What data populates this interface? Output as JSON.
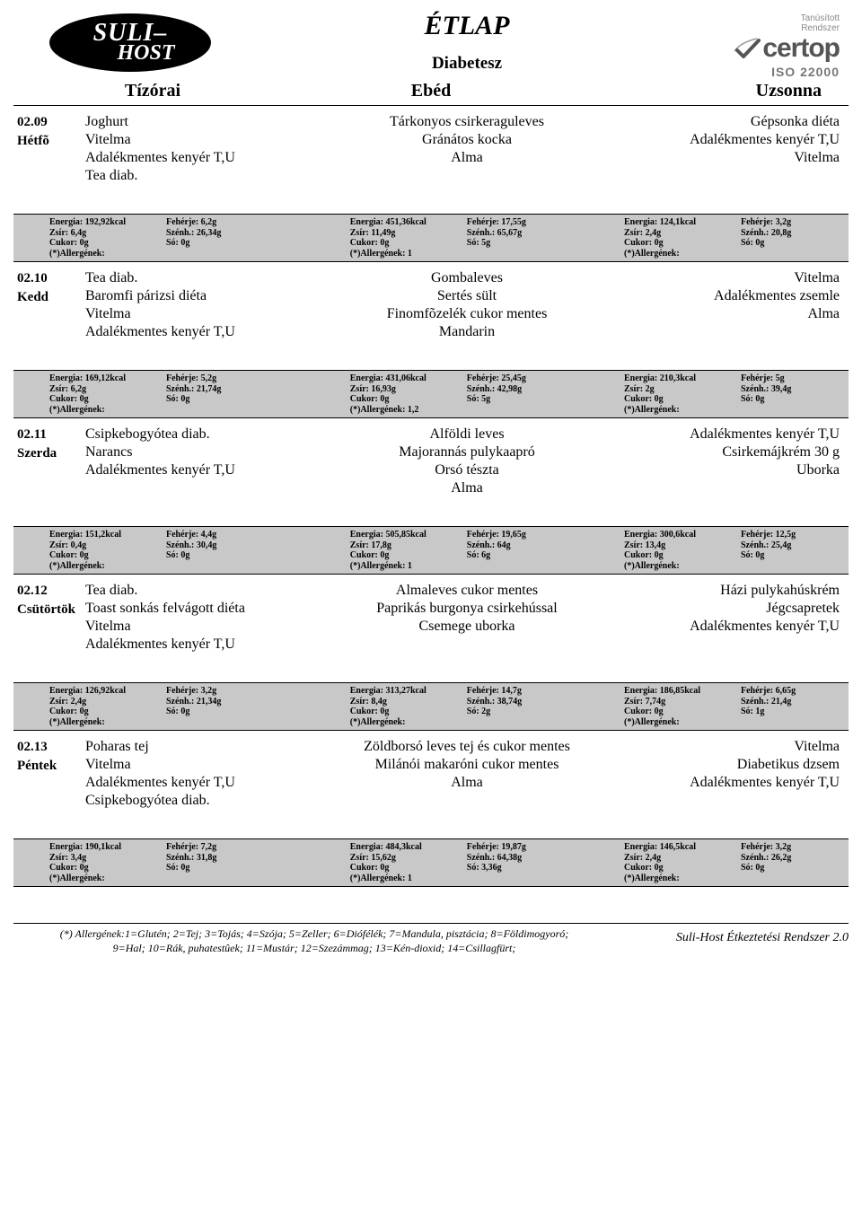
{
  "header": {
    "logo_line1": "SULI–",
    "logo_line2": "HOST",
    "title": "ÉTLAP",
    "subtitle": "Diabetesz",
    "certop_label1": "Tanúsított",
    "certop_label2": "Rendszer",
    "certop_brand": "certop",
    "certop_iso": "ISO 22000"
  },
  "columns": {
    "c1": "Tízórai",
    "c2": "Ebéd",
    "c3": "Uzsonna"
  },
  "days": [
    {
      "date": "02.09",
      "dow": "Hétfõ",
      "tizorai": [
        "Joghurt",
        "Vitelma",
        "Adalékmentes kenyér T,U",
        "Tea diab."
      ],
      "ebed": [
        "Tárkonyos csirkeraguleves",
        "Gránátos kocka",
        "Alma"
      ],
      "uzsonna": [
        "Gépsonka diéta",
        "Adalékmentes kenyér T,U",
        "Vitelma"
      ],
      "nutrition": [
        {
          "energia": "192,92kcal",
          "zsir": "6,4g",
          "cukor": "0g",
          "allerg": "",
          "feherje": "6,2g",
          "szenh": "26,34g",
          "so": "0g"
        },
        {
          "energia": "451,36kcal",
          "zsir": "11,49g",
          "cukor": "0g",
          "allerg": "1",
          "feherje": "17,55g",
          "szenh": "65,67g",
          "so": "5g"
        },
        {
          "energia": "124,1kcal",
          "zsir": "2,4g",
          "cukor": "0g",
          "allerg": "",
          "feherje": "3,2g",
          "szenh": "20,8g",
          "so": "0g"
        }
      ]
    },
    {
      "date": "02.10",
      "dow": "Kedd",
      "tizorai": [
        "Tea diab.",
        "Baromfi párizsi diéta",
        "Vitelma",
        "Adalékmentes kenyér T,U"
      ],
      "ebed": [
        "Gombaleves",
        "Sertés sült",
        "Finomfõzelék cukor mentes",
        "Mandarin"
      ],
      "uzsonna": [
        "Vitelma",
        "Adalékmentes zsemle",
        "Alma"
      ],
      "nutrition": [
        {
          "energia": "169,12kcal",
          "zsir": "6,2g",
          "cukor": "0g",
          "allerg": "",
          "feherje": "5,2g",
          "szenh": "21,74g",
          "so": "0g"
        },
        {
          "energia": "431,06kcal",
          "zsir": "16,93g",
          "cukor": "0g",
          "allerg": "1,2",
          "feherje": "25,45g",
          "szenh": "42,98g",
          "so": "5g"
        },
        {
          "energia": "210,3kcal",
          "zsir": "2g",
          "cukor": "0g",
          "allerg": "",
          "feherje": "5g",
          "szenh": "39,4g",
          "so": "0g"
        }
      ]
    },
    {
      "date": "02.11",
      "dow": "Szerda",
      "tizorai": [
        "Csipkebogyótea diab.",
        "Narancs",
        "Adalékmentes kenyér T,U"
      ],
      "ebed": [
        "Alföldi leves",
        "Majorannás pulykaapró",
        "Orsó tészta",
        "Alma"
      ],
      "uzsonna": [
        "Adalékmentes kenyér T,U",
        "Csirkemájkrém 30 g",
        "Uborka"
      ],
      "nutrition": [
        {
          "energia": "151,2kcal",
          "zsir": "0,4g",
          "cukor": "0g",
          "allerg": "",
          "feherje": "4,4g",
          "szenh": "30,4g",
          "so": "0g"
        },
        {
          "energia": "505,85kcal",
          "zsir": "17,8g",
          "cukor": "0g",
          "allerg": "1",
          "feherje": "19,65g",
          "szenh": "64g",
          "so": "6g"
        },
        {
          "energia": "300,6kcal",
          "zsir": "13,4g",
          "cukor": "0g",
          "allerg": "",
          "feherje": "12,5g",
          "szenh": "25,4g",
          "so": "0g"
        }
      ]
    },
    {
      "date": "02.12",
      "dow": "Csütörtök",
      "tizorai": [
        "Tea diab.",
        "Toast sonkás felvágott diéta",
        "Vitelma",
        "Adalékmentes kenyér T,U"
      ],
      "ebed": [
        "Almaleves cukor mentes",
        "Paprikás burgonya csirkehússal",
        "Csemege uborka"
      ],
      "uzsonna": [
        "Házi pulykahúskrém",
        "Jégcsapretek",
        "Adalékmentes kenyér T,U"
      ],
      "nutrition": [
        {
          "energia": "126,92kcal",
          "zsir": "2,4g",
          "cukor": "0g",
          "allerg": "",
          "feherje": "3,2g",
          "szenh": "21,34g",
          "so": "0g"
        },
        {
          "energia": "313,27kcal",
          "zsir": "8,4g",
          "cukor": "0g",
          "allerg": "",
          "feherje": "14,7g",
          "szenh": "38,74g",
          "so": "2g"
        },
        {
          "energia": "186,85kcal",
          "zsir": "7,74g",
          "cukor": "0g",
          "allerg": "",
          "feherje": "6,65g",
          "szenh": "21,4g",
          "so": "1g"
        }
      ]
    },
    {
      "date": "02.13",
      "dow": "Péntek",
      "tizorai": [
        "Poharas tej",
        "Vitelma",
        "Adalékmentes kenyér T,U",
        "Csipkebogyótea diab."
      ],
      "ebed": [
        "Zöldborsó leves tej és cukor mentes",
        "Milánói makaróni cukor mentes",
        "Alma"
      ],
      "uzsonna": [
        "Vitelma",
        "Diabetikus dzsem",
        "Adalékmentes kenyér T,U"
      ],
      "nutrition": [
        {
          "energia": "190,1kcal",
          "zsir": "3,4g",
          "cukor": "0g",
          "allerg": "",
          "feherje": "7,2g",
          "szenh": "31,8g",
          "so": "0g"
        },
        {
          "energia": "484,3kcal",
          "zsir": "15,62g",
          "cukor": "0g",
          "allerg": "1",
          "feherje": "19,87g",
          "szenh": "64,38g",
          "so": "3,36g"
        },
        {
          "energia": "146,5kcal",
          "zsir": "2,4g",
          "cukor": "0g",
          "allerg": "",
          "feherje": "3,2g",
          "szenh": "26,2g",
          "so": "0g"
        }
      ]
    }
  ],
  "labels": {
    "energia": "Energia:",
    "zsir": "Zsír:",
    "cukor": "Cukor:",
    "allerg": "(*)Allergének:",
    "feherje": "Fehérje:",
    "szenh": "Szénh.:",
    "so": "Só:"
  },
  "footer": {
    "legend1": "(*) Allergének:1=Glutén; 2=Tej; 3=Tojás; 4=Szója; 5=Zeller; 6=Diófélék; 7=Mandula, pisztácia; 8=Földimogyoró;",
    "legend2": "9=Hal; 10=Rák, puhatestûek; 11=Mustár; 12=Szezámmag; 13=Kén-dioxid; 14=Csillagfürt;",
    "system": "Suli-Host Étkeztetési Rendszer 2.0"
  },
  "style": {
    "page_bg": "#ffffff",
    "text_color": "#000000",
    "nutri_bg": "#c8c8c8",
    "rule_color": "#000000",
    "title_fontsize": 30,
    "subtitle_fontsize": 19,
    "colhead_fontsize": 20,
    "body_fontsize": 16,
    "nutri_fontsize": 10,
    "footer_fontsize": 12
  }
}
